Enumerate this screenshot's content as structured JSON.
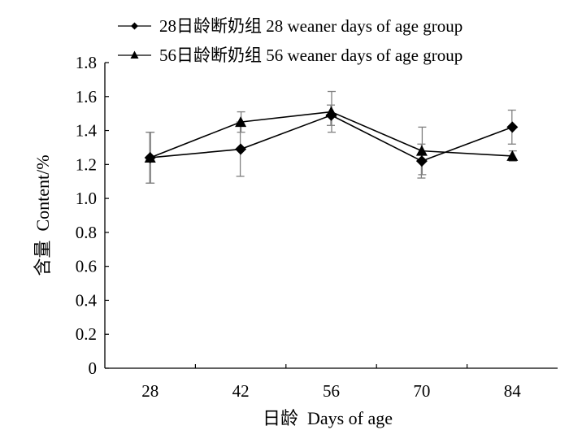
{
  "chart_data": {
    "type": "line",
    "xlabel": "日龄  Days of age",
    "ylabel": "含量  Content/%",
    "categories": [
      "28",
      "42",
      "56",
      "70",
      "84"
    ],
    "x_ticks": [
      "28",
      "42",
      "56",
      "70",
      "84"
    ],
    "y_ticks": [
      "0",
      "0.2",
      "0.4",
      "0.6",
      "0.8",
      "1.0",
      "1.2",
      "1.4",
      "1.6",
      "1.8"
    ],
    "ylim": [
      0,
      1.8
    ],
    "grid": false,
    "legend_position": "top",
    "series": [
      {
        "name": "28日龄断奶组 28 weaner days of age group",
        "marker": "diamond",
        "values": [
          1.24,
          1.29,
          1.49,
          1.22,
          1.42
        ],
        "error": [
          0.15,
          0.16,
          0.06,
          0.1,
          0.1
        ]
      },
      {
        "name": "56日龄断奶组 56 weaner days of age group",
        "marker": "triangle",
        "values": [
          1.24,
          1.45,
          1.51,
          1.28,
          1.25
        ],
        "error": [
          0.15,
          0.06,
          0.12,
          0.14,
          0.03
        ]
      }
    ],
    "colors": {
      "line": "#000000",
      "error_bar": "#808080"
    }
  }
}
